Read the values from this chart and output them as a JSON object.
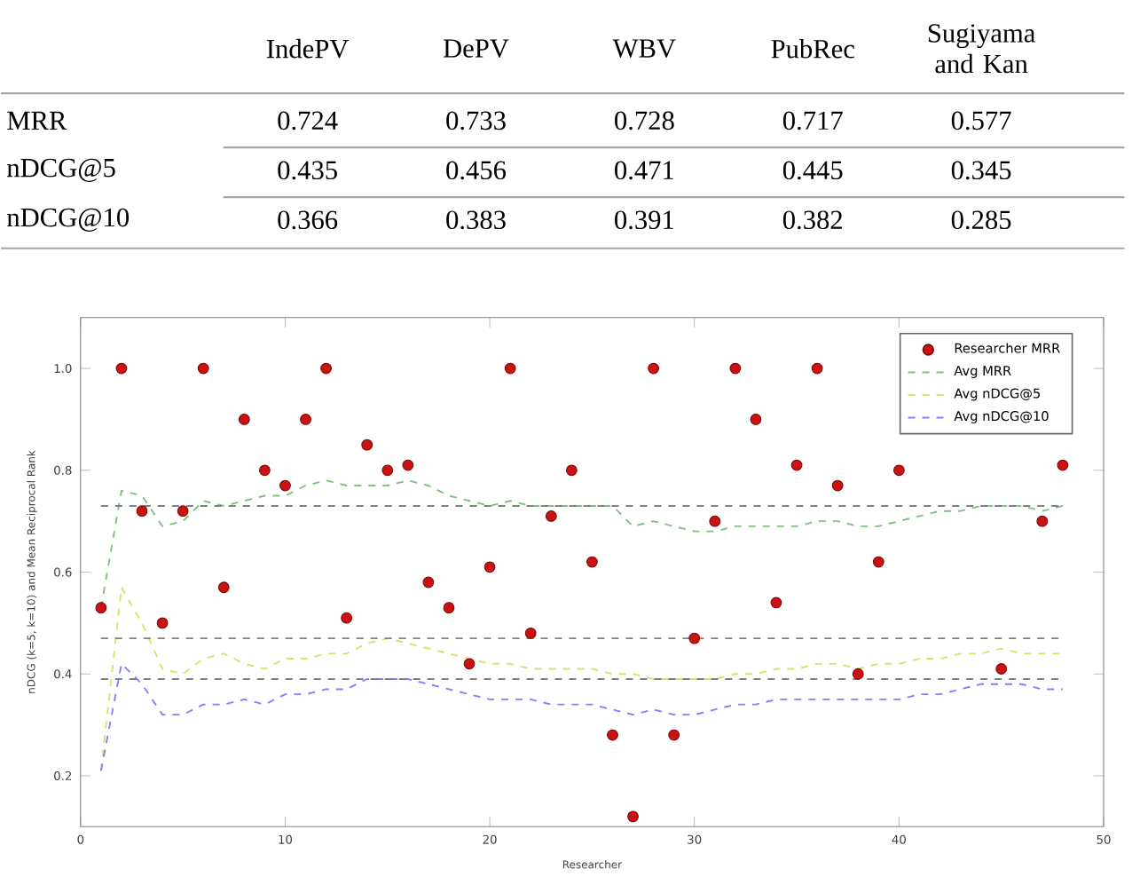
{
  "chart_data": [
    {
      "type": "heatmap",
      "categories": [
        "IndePV",
        "DePV",
        "WBV",
        "PubRec",
        "Sugiyama and Kan"
      ],
      "y_categories": [
        "MRR",
        "nDCG@5",
        "nDCG@10"
      ],
      "cells": [
        [
          0.724,
          0.733,
          0.728,
          0.717,
          0.577
        ],
        [
          0.435,
          0.456,
          0.471,
          0.445,
          0.345
        ],
        [
          0.366,
          0.383,
          0.391,
          0.382,
          0.285
        ]
      ],
      "data_labels": true
    },
    {
      "type": "line",
      "xlabel": "Researcher",
      "ylabel": "nDCG (k=5, k=10) and Mean Reciprocal Rank",
      "x": [
        1,
        2,
        3,
        4,
        5,
        6,
        7,
        8,
        9,
        10,
        11,
        12,
        13,
        14,
        15,
        16,
        17,
        18,
        19,
        20,
        21,
        22,
        23,
        24,
        25,
        26,
        27,
        28,
        29,
        30,
        31,
        32,
        33,
        34,
        35,
        36,
        37,
        38,
        39,
        40,
        41,
        42,
        43,
        44,
        45,
        46,
        47,
        48
      ],
      "xlim": [
        0,
        50
      ],
      "xticks": [
        0,
        10,
        20,
        30,
        40,
        50
      ],
      "ylim": [
        0.1,
        1.1
      ],
      "yticks": [
        0.2,
        0.4,
        0.6,
        0.8,
        {
          "value": 1,
          "label": "1.0"
        }
      ],
      "legend": "top right",
      "series": [
        {
          "name": "Researcher MRR",
          "type": "scatter",
          "marker": "circle",
          "color": "#cc1111",
          "values": [
            0.53,
            1.0,
            0.72,
            0.5,
            0.72,
            1.0,
            0.57,
            0.9,
            0.8,
            0.77,
            0.9,
            1.0,
            0.51,
            0.85,
            0.8,
            0.81,
            0.58,
            0.53,
            0.42,
            0.61,
            1.0,
            0.48,
            0.71,
            0.8,
            0.62,
            0.28,
            0.12,
            1.0,
            0.28,
            0.47,
            0.7,
            1.0,
            0.9,
            0.54,
            0.81,
            1.0,
            0.77,
            0.4,
            0.62,
            0.8,
            null,
            null,
            null,
            null,
            0.41,
            null,
            0.7,
            0.81
          ]
        },
        {
          "name": "Avg MRR",
          "type": "line",
          "marker": "none",
          "line_style": "dashed",
          "color": "#7fbf7f",
          "values": [
            0.53,
            0.76,
            0.75,
            0.69,
            0.7,
            0.74,
            0.73,
            0.74,
            0.75,
            0.75,
            0.77,
            0.78,
            0.77,
            0.77,
            0.77,
            0.78,
            0.77,
            0.75,
            0.74,
            0.73,
            0.74,
            0.73,
            0.73,
            0.73,
            0.73,
            0.73,
            0.69,
            0.7,
            0.69,
            0.68,
            0.68,
            0.69,
            0.69,
            0.69,
            0.69,
            0.7,
            0.7,
            0.69,
            0.69,
            0.7,
            0.71,
            0.72,
            0.72,
            0.73,
            0.73,
            0.73,
            0.72,
            0.73
          ]
        },
        {
          "name": "Avg nDCG@5",
          "type": "line",
          "marker": "none",
          "line_style": "dashed",
          "color": "#dede6a",
          "values": [
            0.21,
            0.57,
            0.5,
            0.41,
            0.4,
            0.43,
            0.44,
            0.42,
            0.41,
            0.43,
            0.43,
            0.44,
            0.44,
            0.46,
            0.47,
            0.46,
            0.45,
            0.44,
            0.43,
            0.42,
            0.42,
            0.41,
            0.41,
            0.41,
            0.41,
            0.4,
            0.4,
            0.39,
            0.39,
            0.39,
            0.39,
            0.4,
            0.4,
            0.41,
            0.41,
            0.42,
            0.42,
            0.41,
            0.42,
            0.42,
            0.43,
            0.43,
            0.44,
            0.44,
            0.45,
            0.44,
            0.44,
            0.44
          ]
        },
        {
          "name": "Avg nDCG@10",
          "type": "line",
          "marker": "none",
          "line_style": "dashed",
          "color": "#7f7fff",
          "values": [
            0.21,
            0.42,
            0.38,
            0.32,
            0.32,
            0.34,
            0.34,
            0.35,
            0.34,
            0.36,
            0.36,
            0.37,
            0.37,
            0.39,
            0.39,
            0.39,
            0.38,
            0.37,
            0.36,
            0.35,
            0.35,
            0.35,
            0.34,
            0.34,
            0.34,
            0.33,
            0.32,
            0.33,
            0.32,
            0.32,
            0.33,
            0.34,
            0.34,
            0.35,
            0.35,
            0.35,
            0.35,
            0.35,
            0.35,
            0.35,
            0.36,
            0.36,
            0.37,
            0.38,
            0.38,
            0.38,
            0.37,
            0.37
          ]
        }
      ],
      "ref_lines": [
        {
          "axis": "y",
          "value": 0.73,
          "color": "#808080",
          "line_style": "dashed"
        },
        {
          "axis": "y",
          "value": 0.47,
          "color": "#808080",
          "line_style": "dashed"
        },
        {
          "axis": "y",
          "value": 0.39,
          "color": "#808080",
          "line_style": "dashed"
        }
      ]
    }
  ]
}
